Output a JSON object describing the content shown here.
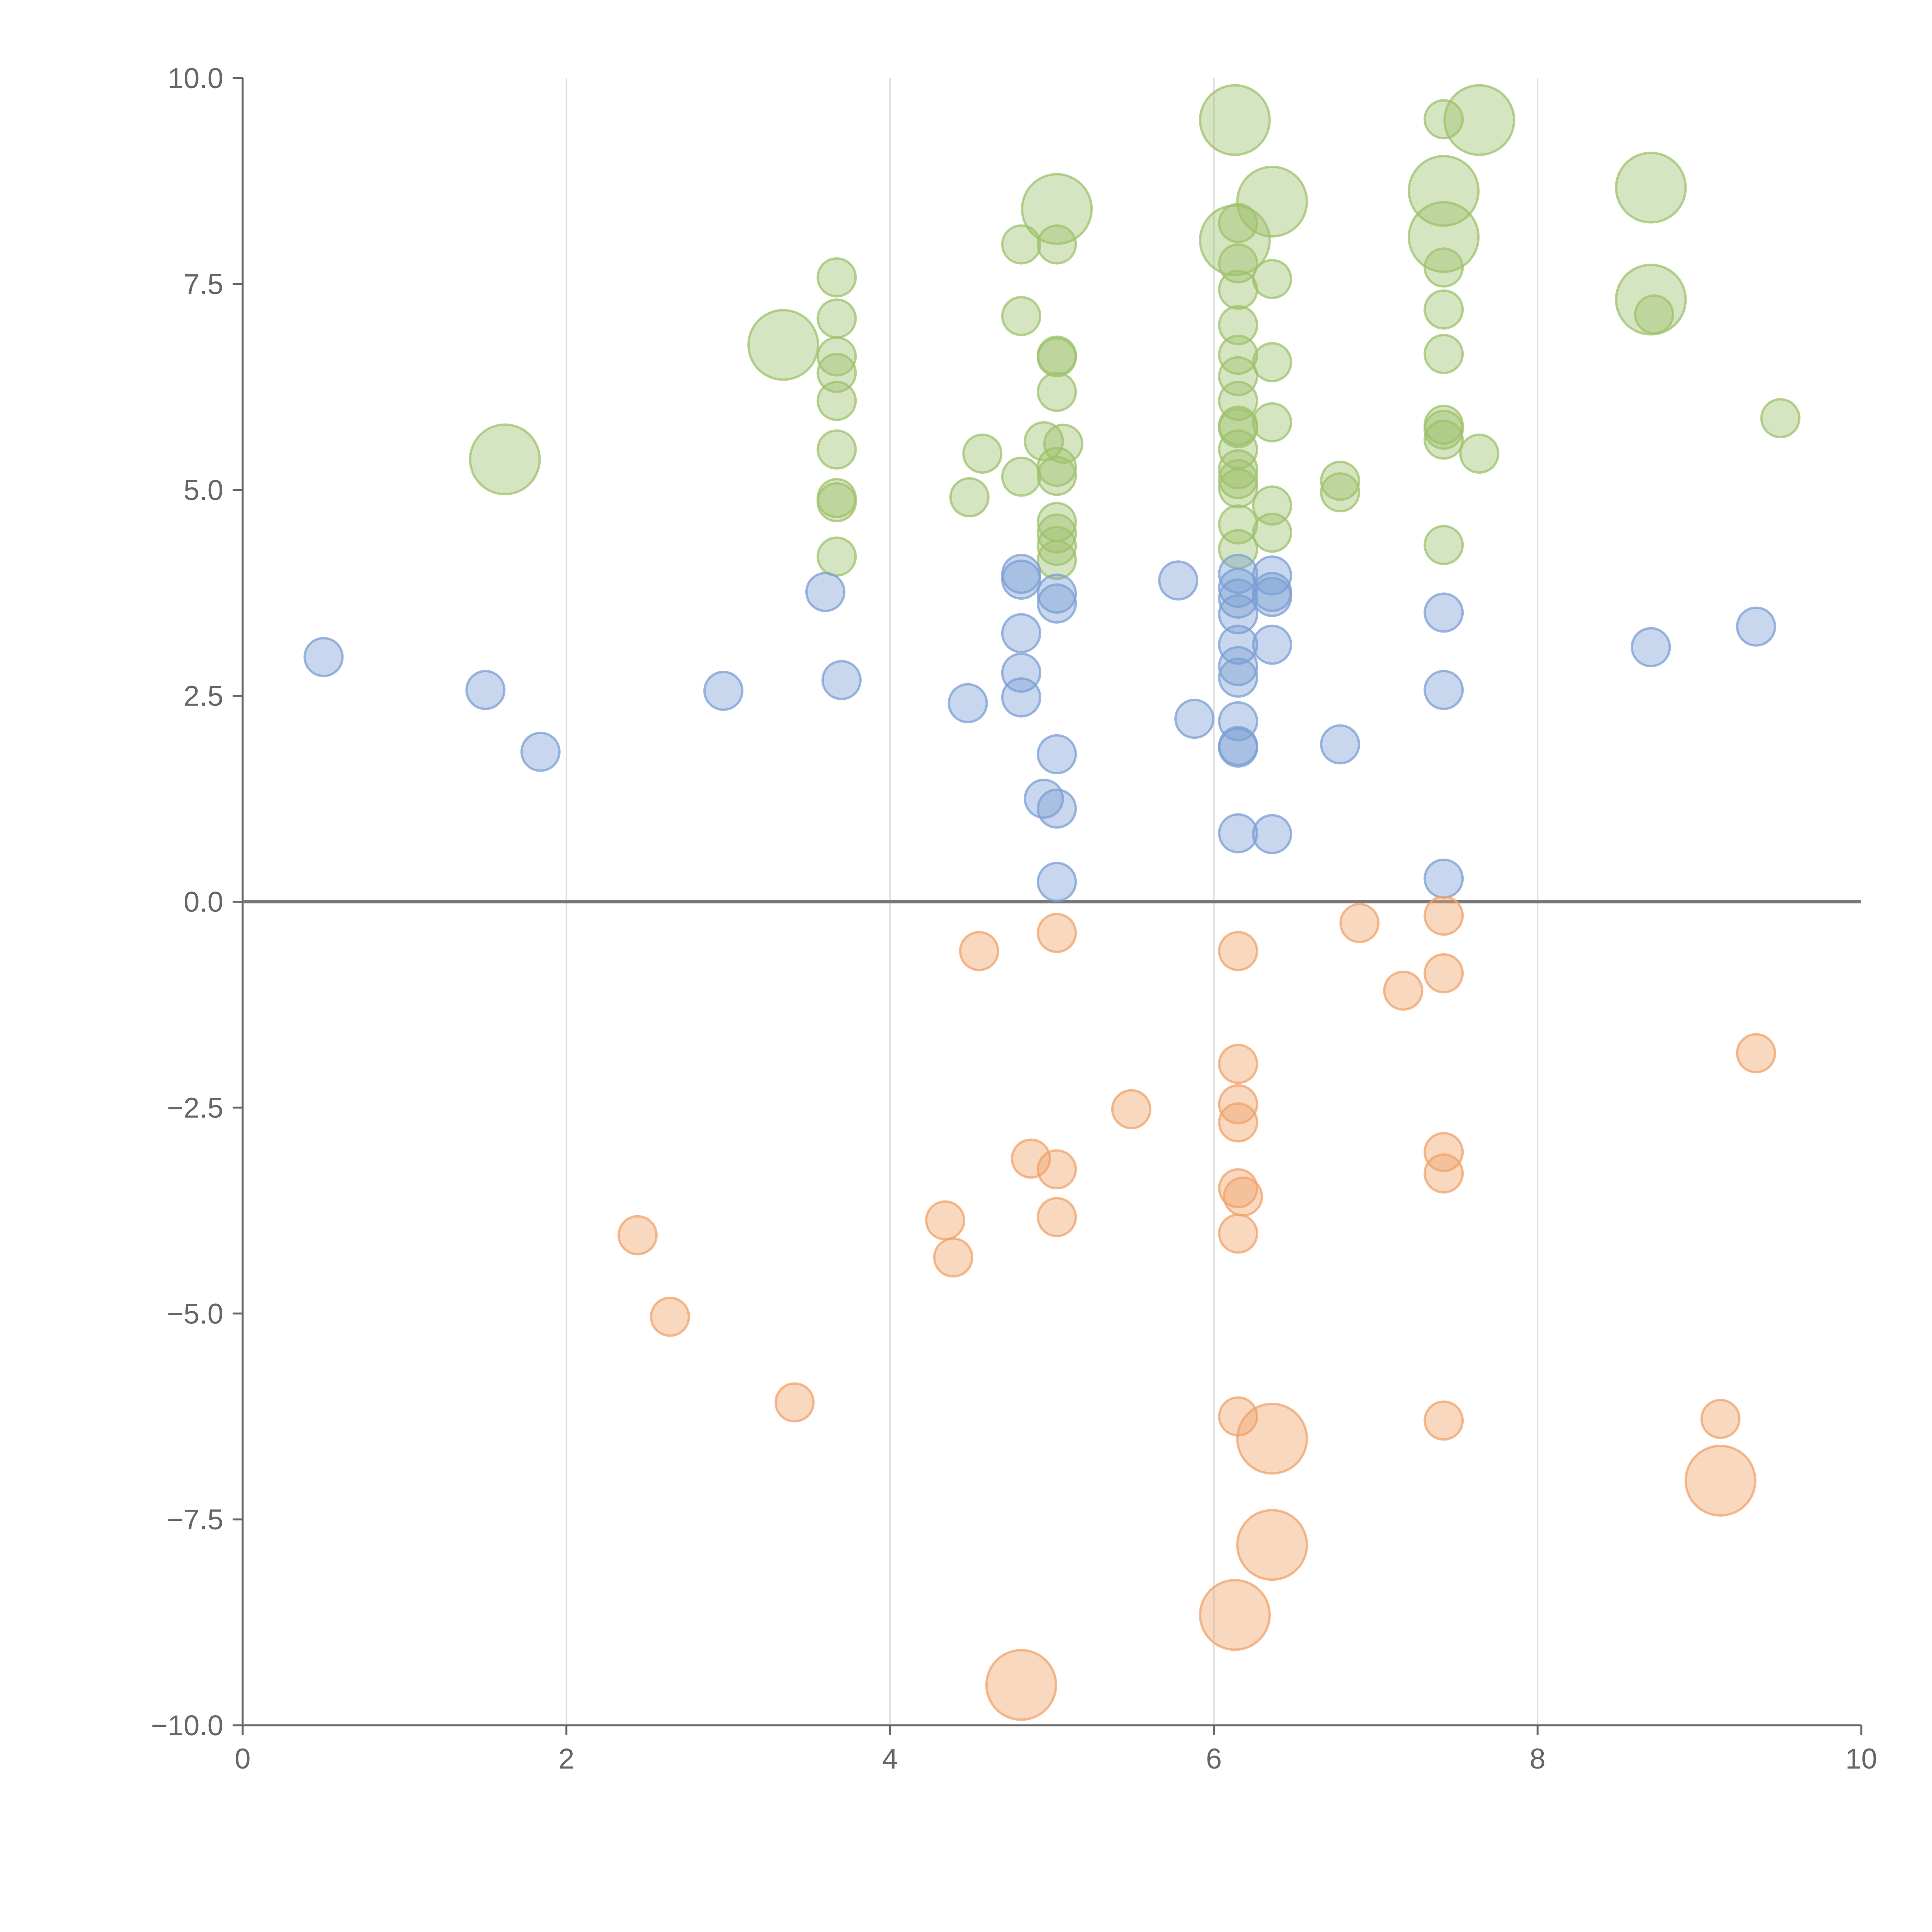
{
  "chart_data": {
    "type": "scatter",
    "title": "",
    "xlabel": "",
    "ylabel": "",
    "xlim": [
      0,
      10
    ],
    "ylim": [
      -10,
      10
    ],
    "x_ticks": [
      "0",
      "2",
      "4",
      "6",
      "8",
      "10"
    ],
    "y_ticks": [
      "10.0",
      "7.5",
      "5.0",
      "2.5",
      "0.0",
      "−2.5",
      "−5.0",
      "−7.5",
      "−10.0"
    ],
    "vertical_grid_at": [
      2,
      4,
      6,
      8
    ],
    "zero_line_at": 0,
    "series": [
      {
        "name": "green",
        "color": "#9dc16b",
        "points": [
          [
            1.62,
            5.37,
            1
          ],
          [
            3.34,
            6.76,
            1
          ],
          [
            3.67,
            7.58,
            0
          ],
          [
            3.67,
            7.08,
            0
          ],
          [
            3.67,
            6.62,
            0
          ],
          [
            3.67,
            6.42,
            0
          ],
          [
            3.67,
            6.08,
            0
          ],
          [
            3.67,
            5.49,
            0
          ],
          [
            3.67,
            4.9,
            0
          ],
          [
            3.67,
            4.85,
            0
          ],
          [
            3.67,
            4.19,
            0
          ],
          [
            4.49,
            4.91,
            0
          ],
          [
            4.57,
            5.44,
            0
          ],
          [
            4.81,
            7.98,
            0
          ],
          [
            4.81,
            7.11,
            0
          ],
          [
            4.81,
            5.16,
            0
          ],
          [
            4.95,
            5.59,
            0
          ],
          [
            5.03,
            8.41,
            1
          ],
          [
            5.03,
            7.98,
            0
          ],
          [
            5.03,
            6.63,
            0
          ],
          [
            5.03,
            6.61,
            0
          ],
          [
            5.03,
            6.19,
            0
          ],
          [
            5.03,
            5.28,
            0
          ],
          [
            5.03,
            5.17,
            0
          ],
          [
            5.03,
            4.61,
            0
          ],
          [
            5.03,
            4.47,
            0
          ],
          [
            5.03,
            4.32,
            0
          ],
          [
            5.03,
            4.15,
            0
          ],
          [
            5.07,
            5.56,
            0
          ],
          [
            6.13,
            9.49,
            1
          ],
          [
            6.13,
            8.03,
            1
          ],
          [
            6.15,
            8.24,
            0
          ],
          [
            6.15,
            7.75,
            0
          ],
          [
            6.15,
            7.43,
            0
          ],
          [
            6.15,
            7.0,
            0
          ],
          [
            6.15,
            6.64,
            0
          ],
          [
            6.15,
            6.38,
            0
          ],
          [
            6.15,
            6.08,
            0
          ],
          [
            6.15,
            5.78,
            0
          ],
          [
            6.15,
            5.75,
            0
          ],
          [
            6.15,
            5.49,
            0
          ],
          [
            6.15,
            5.25,
            0
          ],
          [
            6.15,
            5.13,
            0
          ],
          [
            6.15,
            5.02,
            0
          ],
          [
            6.15,
            4.58,
            0
          ],
          [
            6.15,
            4.28,
            0
          ],
          [
            6.36,
            8.5,
            1
          ],
          [
            6.36,
            7.56,
            0
          ],
          [
            6.36,
            6.55,
            0
          ],
          [
            6.36,
            5.82,
            0
          ],
          [
            6.36,
            4.81,
            0
          ],
          [
            6.36,
            4.48,
            0
          ],
          [
            6.78,
            5.11,
            0
          ],
          [
            6.78,
            4.97,
            0
          ],
          [
            7.42,
            9.5,
            0
          ],
          [
            7.42,
            8.63,
            1
          ],
          [
            7.42,
            8.07,
            1
          ],
          [
            7.42,
            7.7,
            0
          ],
          [
            7.42,
            7.19,
            0
          ],
          [
            7.42,
            6.65,
            0
          ],
          [
            7.42,
            5.79,
            0
          ],
          [
            7.42,
            5.73,
            0
          ],
          [
            7.42,
            5.61,
            0
          ],
          [
            7.42,
            4.33,
            0
          ],
          [
            7.64,
            9.49,
            1
          ],
          [
            7.64,
            5.44,
            0
          ],
          [
            8.7,
            8.67,
            1
          ],
          [
            8.7,
            7.31,
            1
          ],
          [
            8.72,
            7.13,
            0
          ],
          [
            9.5,
            5.87,
            0
          ]
        ]
      },
      {
        "name": "blue",
        "color": "#7b9fd4",
        "points": [
          [
            0.5,
            2.97,
            0
          ],
          [
            1.5,
            2.57,
            0
          ],
          [
            1.84,
            1.82,
            0
          ],
          [
            2.97,
            2.56,
            0
          ],
          [
            3.6,
            3.76,
            0
          ],
          [
            3.7,
            2.69,
            0
          ],
          [
            4.48,
            2.41,
            0
          ],
          [
            4.81,
            3.98,
            0
          ],
          [
            4.81,
            3.91,
            0
          ],
          [
            4.81,
            3.26,
            0
          ],
          [
            4.81,
            2.78,
            0
          ],
          [
            4.81,
            2.48,
            0
          ],
          [
            4.95,
            1.25,
            0
          ],
          [
            5.03,
            3.74,
            0
          ],
          [
            5.03,
            3.62,
            0
          ],
          [
            5.03,
            1.79,
            0
          ],
          [
            5.03,
            1.13,
            0
          ],
          [
            5.03,
            0.24,
            0
          ],
          [
            5.78,
            3.9,
            0
          ],
          [
            5.88,
            2.22,
            0
          ],
          [
            6.15,
            3.98,
            0
          ],
          [
            6.15,
            3.81,
            0
          ],
          [
            6.15,
            3.68,
            0
          ],
          [
            6.15,
            3.49,
            0
          ],
          [
            6.15,
            3.12,
            0
          ],
          [
            6.15,
            2.86,
            0
          ],
          [
            6.15,
            2.72,
            0
          ],
          [
            6.15,
            2.19,
            0
          ],
          [
            6.15,
            1.89,
            0
          ],
          [
            6.15,
            1.87,
            0
          ],
          [
            6.15,
            0.83,
            0
          ],
          [
            6.36,
            3.96,
            0
          ],
          [
            6.36,
            3.76,
            0
          ],
          [
            6.36,
            3.7,
            0
          ],
          [
            6.36,
            3.12,
            0
          ],
          [
            6.36,
            0.82,
            0
          ],
          [
            6.78,
            1.91,
            0
          ],
          [
            7.42,
            3.51,
            0
          ],
          [
            7.42,
            2.57,
            0
          ],
          [
            7.42,
            0.28,
            0
          ],
          [
            8.7,
            3.09,
            0
          ],
          [
            9.35,
            3.34,
            0
          ]
        ]
      },
      {
        "name": "orange",
        "color": "#f0a36a",
        "points": [
          [
            2.44,
            -4.05,
            0
          ],
          [
            2.64,
            -5.04,
            0
          ],
          [
            3.41,
            -6.08,
            0
          ],
          [
            4.34,
            -3.87,
            0
          ],
          [
            4.39,
            -4.32,
            0
          ],
          [
            4.55,
            -0.6,
            0
          ],
          [
            4.81,
            -9.51,
            1
          ],
          [
            4.87,
            -3.12,
            0
          ],
          [
            5.03,
            -0.38,
            0
          ],
          [
            5.03,
            -3.25,
            0
          ],
          [
            5.03,
            -3.83,
            0
          ],
          [
            5.49,
            -2.52,
            0
          ],
          [
            6.13,
            -8.66,
            1
          ],
          [
            6.15,
            -0.6,
            0
          ],
          [
            6.15,
            -1.97,
            0
          ],
          [
            6.15,
            -2.46,
            0
          ],
          [
            6.15,
            -2.68,
            0
          ],
          [
            6.15,
            -3.48,
            0
          ],
          [
            6.15,
            -4.03,
            0
          ],
          [
            6.15,
            -6.25,
            0
          ],
          [
            6.18,
            -3.58,
            0
          ],
          [
            6.36,
            -6.52,
            1
          ],
          [
            6.36,
            -7.81,
            1
          ],
          [
            6.9,
            -0.26,
            0
          ],
          [
            7.17,
            -1.08,
            0
          ],
          [
            7.42,
            -0.17,
            0
          ],
          [
            7.42,
            -0.87,
            0
          ],
          [
            7.42,
            -3.04,
            0
          ],
          [
            7.42,
            -3.3,
            0
          ],
          [
            7.42,
            -6.3,
            0
          ],
          [
            9.13,
            -6.28,
            0
          ],
          [
            9.13,
            -7.03,
            1
          ],
          [
            9.35,
            -1.84,
            0
          ]
        ]
      }
    ]
  }
}
